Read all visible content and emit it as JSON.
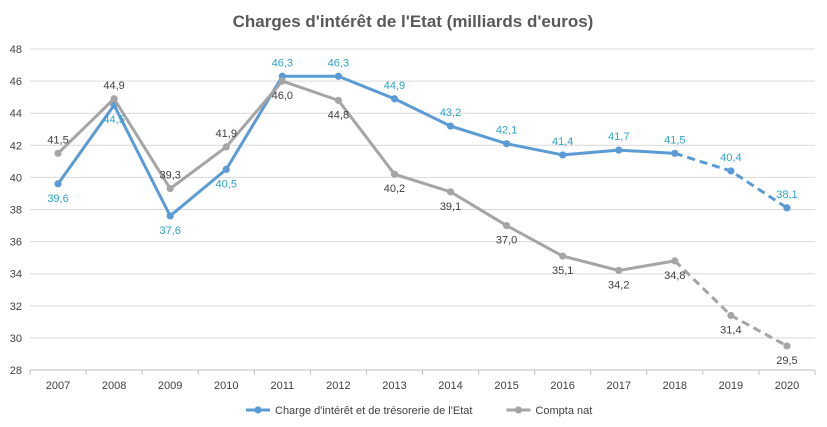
{
  "chart_data": {
    "type": "line",
    "title": "Charges d'intérêt de l'Etat (milliards d'euros)",
    "xlabel": "",
    "ylabel": "",
    "categories": [
      "2007",
      "2008",
      "2009",
      "2010",
      "2011",
      "2012",
      "2013",
      "2014",
      "2015",
      "2016",
      "2017",
      "2018",
      "2019",
      "2020"
    ],
    "ylim": [
      28,
      48
    ],
    "yticks": [
      28,
      30,
      32,
      34,
      36,
      38,
      40,
      42,
      44,
      46,
      48
    ],
    "ytick_labels": [
      "28",
      "30",
      "32",
      "34",
      "36",
      "38",
      "40",
      "42",
      "44",
      "46",
      "48"
    ],
    "grid": true,
    "legend_position": "bottom",
    "series": [
      {
        "name": "Charge d'intérêt et de trésorerie de l'Etat",
        "color": "#5b9bd5",
        "label_color": "#2aa3c9",
        "values": [
          39.6,
          44.5,
          37.6,
          40.5,
          46.3,
          46.3,
          44.9,
          43.2,
          42.1,
          41.4,
          41.7,
          41.5,
          40.4,
          38.1
        ],
        "labels": [
          "39,6",
          "44,5",
          "37,6",
          "40,5",
          "46,3",
          "46,3",
          "44,9",
          "43,2",
          "42,1",
          "41,4",
          "41,7",
          "41,5",
          "40,4",
          "38,1"
        ],
        "dashed_from_index": 11
      },
      {
        "name": "Compta nat",
        "color": "#a5a5a5",
        "label_color": "#404040",
        "values": [
          41.5,
          44.9,
          39.3,
          41.9,
          46.0,
          44.8,
          40.2,
          39.1,
          37.0,
          35.1,
          34.2,
          34.8,
          31.4,
          29.5
        ],
        "labels": [
          "41,5",
          "44,9",
          "39,3",
          "41,9",
          "46,0",
          "44,8",
          "40,2",
          "39,1",
          "37,0",
          "35,1",
          "34,2",
          "34,8",
          "31,4",
          "29,5"
        ],
        "dashed_from_index": 11
      }
    ]
  }
}
